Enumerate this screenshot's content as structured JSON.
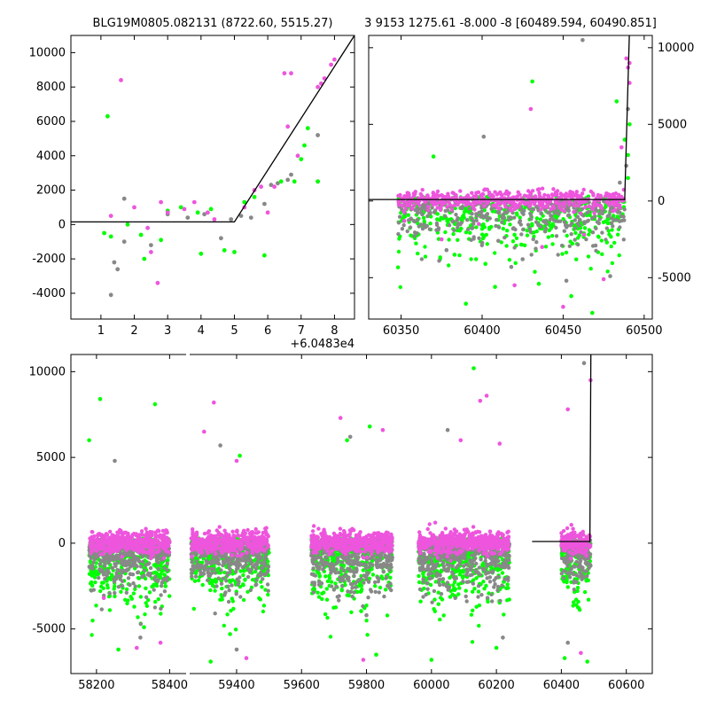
{
  "figure": {
    "title_left": "BLG19M0805.082131 (8722.60, 5515.27)",
    "title_right": "3 9153 1275.61 -8.000 -8 [60489.594, 60490.851]"
  },
  "colors": {
    "pink": "#ee55dd",
    "green": "#00ff00",
    "gray": "#888888",
    "line": "#000000"
  },
  "chart_data": [
    {
      "type": "scatter",
      "panel": "top-left-zoom",
      "xlim": [
        0.1,
        8.6
      ],
      "ylim": [
        -5500,
        11000
      ],
      "xticks": [
        1,
        2,
        3,
        4,
        5,
        6,
        7,
        8
      ],
      "yticks": [
        -4000,
        -2000,
        0,
        2000,
        4000,
        6000,
        8000,
        10000
      ],
      "x_offset_label": "+6.0483e4",
      "model": [
        [
          0.1,
          150
        ],
        [
          5.0,
          150
        ],
        [
          8.6,
          11000
        ]
      ],
      "series": [
        {
          "color": "pink",
          "points": [
            [
              1.3,
              500
            ],
            [
              1.6,
              8400
            ],
            [
              2.0,
              1000
            ],
            [
              2.4,
              -200
            ],
            [
              2.5,
              -1600
            ],
            [
              2.7,
              -3400
            ],
            [
              2.8,
              1300
            ],
            [
              3.0,
              700
            ],
            [
              3.5,
              900
            ],
            [
              3.8,
              1300
            ],
            [
              4.2,
              700
            ],
            [
              4.4,
              300
            ],
            [
              5.3,
              1000
            ],
            [
              5.6,
              2000
            ],
            [
              5.8,
              2200
            ],
            [
              6.0,
              700
            ],
            [
              6.2,
              2200
            ],
            [
              6.5,
              8800
            ],
            [
              6.6,
              5700
            ],
            [
              6.7,
              8800
            ],
            [
              6.9,
              4000
            ],
            [
              7.5,
              8000
            ],
            [
              7.6,
              8200
            ],
            [
              7.7,
              8500
            ],
            [
              7.9,
              9300
            ],
            [
              8.0,
              9600
            ]
          ]
        },
        {
          "color": "green",
          "points": [
            [
              1.1,
              -500
            ],
            [
              1.2,
              6300
            ],
            [
              1.3,
              -700
            ],
            [
              1.8,
              0
            ],
            [
              2.2,
              -600
            ],
            [
              2.3,
              -2000
            ],
            [
              2.8,
              -900
            ],
            [
              3.0,
              800
            ],
            [
              3.4,
              1000
            ],
            [
              3.9,
              700
            ],
            [
              4.0,
              -1700
            ],
            [
              4.3,
              900
            ],
            [
              4.7,
              -1500
            ],
            [
              5.0,
              -1600
            ],
            [
              5.3,
              1300
            ],
            [
              5.6,
              1600
            ],
            [
              5.9,
              -1800
            ],
            [
              6.4,
              2500
            ],
            [
              6.8,
              2500
            ],
            [
              7.0,
              3800
            ],
            [
              7.1,
              4600
            ],
            [
              7.2,
              5600
            ],
            [
              7.5,
              2500
            ]
          ]
        },
        {
          "color": "gray",
          "points": [
            [
              1.3,
              -4100
            ],
            [
              1.4,
              -2200
            ],
            [
              1.5,
              -2600
            ],
            [
              1.7,
              -1000
            ],
            [
              1.7,
              1500
            ],
            [
              2.5,
              -1200
            ],
            [
              3.0,
              600
            ],
            [
              3.6,
              400
            ],
            [
              4.1,
              600
            ],
            [
              4.6,
              -800
            ],
            [
              4.9,
              300
            ],
            [
              5.2,
              500
            ],
            [
              5.5,
              400
            ],
            [
              5.9,
              1200
            ],
            [
              6.1,
              2300
            ],
            [
              6.3,
              2400
            ],
            [
              6.6,
              2600
            ],
            [
              6.7,
              2900
            ],
            [
              7.5,
              5200
            ],
            [
              7.5,
              2500
            ]
          ]
        }
      ]
    },
    {
      "type": "scatter",
      "panel": "top-right",
      "xlim": [
        60330,
        60505
      ],
      "ylim": [
        -7700,
        10800
      ],
      "xticks": [
        60350,
        60400,
        60450,
        60500
      ],
      "yticks": [
        -5000,
        0,
        5000,
        10000
      ],
      "model": [
        [
          60330,
          100
        ],
        [
          60488,
          100
        ],
        [
          60490.85,
          10800
        ]
      ],
      "outliers": {
        "pink": [
          [
            60352,
            -1300
          ],
          [
            60375,
            -2500
          ],
          [
            60398,
            -1500
          ],
          [
            60420,
            -5500
          ],
          [
            60430,
            6000
          ],
          [
            60437,
            -3000
          ],
          [
            60450,
            -6900
          ],
          [
            60463,
            -2200
          ],
          [
            60475,
            -5100
          ],
          [
            60486,
            3500
          ],
          [
            60489,
            9300
          ],
          [
            60490,
            8700
          ],
          [
            60491,
            9000
          ],
          [
            60491,
            7700
          ]
        ],
        "green": [
          [
            60370,
            2900
          ],
          [
            60383,
            -3500
          ],
          [
            60390,
            -6700
          ],
          [
            60402,
            -4100
          ],
          [
            60408,
            -5600
          ],
          [
            60420,
            -2200
          ],
          [
            60431,
            7800
          ],
          [
            60435,
            -5400
          ],
          [
            60445,
            -1000
          ],
          [
            60455,
            -6200
          ],
          [
            60468,
            -7300
          ],
          [
            60477,
            -2700
          ],
          [
            60483,
            6500
          ],
          [
            60488,
            4000
          ],
          [
            60490,
            3000
          ],
          [
            60491,
            5000
          ],
          [
            60490,
            1500
          ]
        ],
        "gray": [
          [
            60365,
            -1700
          ],
          [
            60378,
            -3200
          ],
          [
            60401,
            4200
          ],
          [
            60410,
            -2600
          ],
          [
            60418,
            -4300
          ],
          [
            60425,
            -3800
          ],
          [
            60440,
            -1500
          ],
          [
            60452,
            -5200
          ],
          [
            60462,
            10500
          ],
          [
            60470,
            -2900
          ],
          [
            60479,
            -4900
          ],
          [
            60485,
            1200
          ],
          [
            60489,
            2300
          ],
          [
            60490,
            6000
          ]
        ]
      }
    },
    {
      "type": "scatter",
      "panel": "bottom-full",
      "xlim": [
        58130,
        60680
      ],
      "ylim": [
        -7600,
        11000
      ],
      "xticks": [
        58200,
        58400,
        59400,
        59600,
        59800,
        60000,
        60200,
        60400,
        60600
      ],
      "yticks": [
        -5000,
        0,
        5000,
        10000
      ],
      "break": [
        58450,
        59250
      ],
      "seasons": [
        [
          58180,
          58400
        ],
        [
          59260,
          59500
        ],
        [
          59630,
          59880
        ],
        [
          59960,
          60240
        ],
        [
          60400,
          60490
        ]
      ],
      "model": [
        [
          60310,
          100
        ],
        [
          60488,
          100
        ],
        [
          60491,
          11000
        ]
      ],
      "outliers": {
        "pink": [
          [
            58220,
            -3200
          ],
          [
            58310,
            -6100
          ],
          [
            58375,
            -5800
          ],
          [
            59300,
            6500
          ],
          [
            59330,
            8200
          ],
          [
            59400,
            4800
          ],
          [
            59430,
            -6700
          ],
          [
            59720,
            7300
          ],
          [
            59790,
            -6800
          ],
          [
            59850,
            6600
          ],
          [
            60090,
            6000
          ],
          [
            60150,
            8300
          ],
          [
            60170,
            8600
          ],
          [
            60210,
            5800
          ],
          [
            60420,
            7800
          ],
          [
            60460,
            -6400
          ],
          [
            60490,
            9500
          ]
        ],
        "green": [
          [
            58180,
            6000
          ],
          [
            58210,
            8400
          ],
          [
            58330,
            -4900
          ],
          [
            58360,
            8100
          ],
          [
            58260,
            -6200
          ],
          [
            59320,
            -6900
          ],
          [
            59380,
            -5300
          ],
          [
            59410,
            5100
          ],
          [
            59740,
            6000
          ],
          [
            59810,
            6800
          ],
          [
            59830,
            -6500
          ],
          [
            60000,
            -6800
          ],
          [
            60130,
            10200
          ],
          [
            60200,
            -6100
          ],
          [
            60410,
            -6700
          ],
          [
            60480,
            -6900
          ]
        ],
        "gray": [
          [
            58250,
            4800
          ],
          [
            58320,
            -5500
          ],
          [
            59350,
            5700
          ],
          [
            59400,
            -6200
          ],
          [
            59750,
            6200
          ],
          [
            59800,
            -4200
          ],
          [
            60050,
            6600
          ],
          [
            60220,
            -5500
          ],
          [
            60420,
            -5800
          ],
          [
            60470,
            10500
          ]
        ]
      }
    }
  ]
}
